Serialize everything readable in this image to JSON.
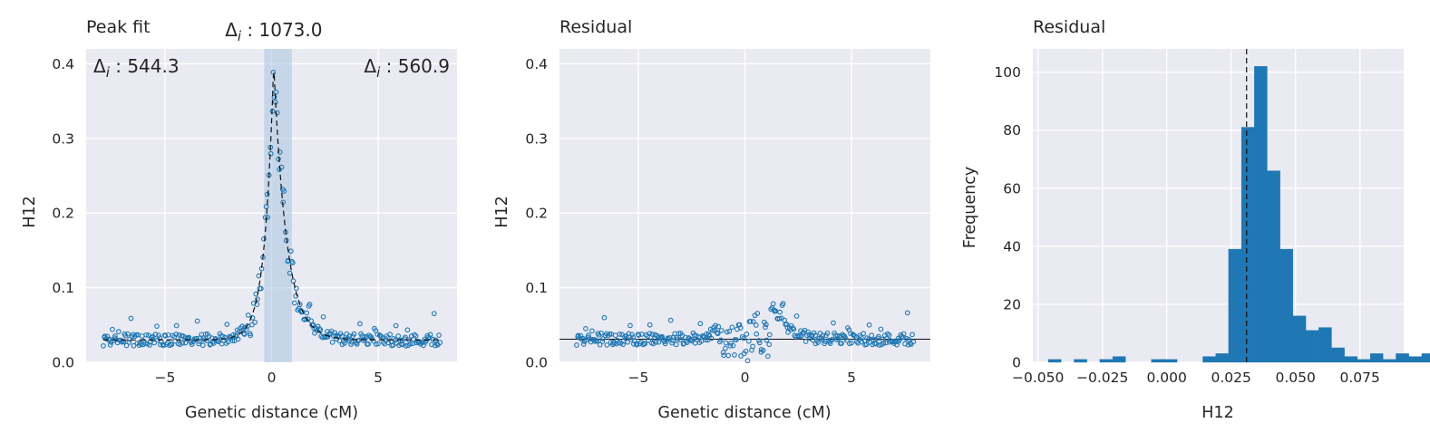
{
  "chart_data": [
    {
      "type": "scatter",
      "title": "Peak fit",
      "xlabel": "Genetic distance (cM)",
      "ylabel": "H12",
      "xlim": [
        -8.7,
        8.7
      ],
      "ylim": [
        0,
        0.42
      ],
      "xticks": [
        -5,
        0,
        5
      ],
      "yticks": [
        0.0,
        0.1,
        0.2,
        0.3,
        0.4
      ],
      "grid": true,
      "annotations": [
        {
          "text": "Δi : 544.3",
          "position": "top-left"
        },
        {
          "text": "Δi : 1073.0",
          "position": "above-center"
        },
        {
          "text": "Δi : 560.9",
          "position": "top-right"
        }
      ],
      "shaded_region": [
        -0.35,
        0.95
      ],
      "baseline": 0.03,
      "peak": {
        "center": 0.1,
        "height": 0.4,
        "width_left": 0.42,
        "width_right": 0.6
      },
      "x_range": [
        -7.9,
        7.9
      ],
      "series": [
        {
          "kind": "scatter",
          "style": "open circles"
        },
        {
          "kind": "fit",
          "style": "dashed black"
        }
      ],
      "color": "#1f77b4"
    },
    {
      "type": "scatter",
      "title": "Residual",
      "xlabel": "Genetic distance (cM)",
      "ylabel": "H12",
      "xlim": [
        -8.7,
        8.7
      ],
      "ylim": [
        0,
        0.42
      ],
      "xticks": [
        -5,
        0,
        5
      ],
      "yticks": [
        0.0,
        0.1,
        0.2,
        0.3,
        0.4
      ],
      "grid": true,
      "hline": 0.031,
      "x_range": [
        -7.9,
        7.9
      ],
      "color": "#1f77b4"
    },
    {
      "type": "bar",
      "title": "Residual",
      "xlabel": "H12",
      "ylabel": "Frequency",
      "xlim": [
        -0.052,
        0.092
      ],
      "ylim": [
        0,
        108
      ],
      "xticks": [
        -0.05,
        -0.025,
        0.0,
        0.025,
        0.05,
        0.075
      ],
      "xtick_labels": [
        "−0.050",
        "−0.025",
        "0.000",
        "0.025",
        "0.050",
        "0.075"
      ],
      "yticks": [
        0,
        20,
        40,
        60,
        80,
        100
      ],
      "grid": true,
      "vline": 0.031,
      "bin_start": -0.046,
      "bin_width": 0.005,
      "values": [
        1,
        0,
        1,
        0,
        1,
        2,
        0,
        0,
        1,
        1,
        0,
        0,
        2,
        3,
        39,
        81,
        102,
        66,
        39,
        16,
        11,
        12,
        5,
        2,
        1,
        3,
        1,
        3,
        2,
        3
      ],
      "color": "#1f77b4"
    }
  ]
}
